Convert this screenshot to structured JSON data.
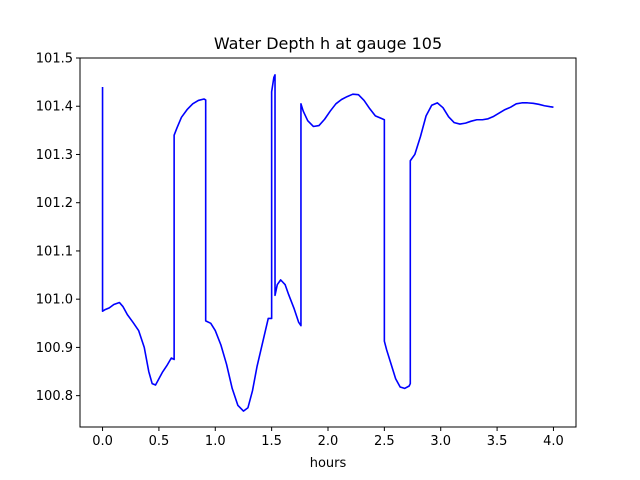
{
  "chart_data": {
    "type": "line",
    "title": "Water Depth h at gauge 105",
    "xlabel": "hours",
    "ylabel": "",
    "xlim": [
      -0.2,
      4.2
    ],
    "ylim": [
      100.735,
      101.5
    ],
    "xticks": [
      0.0,
      0.5,
      1.0,
      1.5,
      2.0,
      2.5,
      3.0,
      3.5,
      4.0
    ],
    "xtick_labels": [
      "0.0",
      "0.5",
      "1.0",
      "1.5",
      "2.0",
      "2.5",
      "3.0",
      "3.5",
      "4.0"
    ],
    "yticks": [
      100.8,
      100.9,
      101.0,
      101.1,
      101.2,
      101.3,
      101.4,
      101.5
    ],
    "ytick_labels": [
      "100.8",
      "100.9",
      "101.0",
      "101.1",
      "101.2",
      "101.3",
      "101.4",
      "101.5"
    ],
    "grid": false,
    "legend": "none",
    "series": [
      {
        "name": "",
        "color": "#0000ff",
        "x": [
          0.0,
          0.0,
          0.02,
          0.06,
          0.1,
          0.15,
          0.18,
          0.22,
          0.27,
          0.32,
          0.37,
          0.41,
          0.44,
          0.47,
          0.5,
          0.53,
          0.57,
          0.61,
          0.635,
          0.635,
          0.66,
          0.7,
          0.75,
          0.8,
          0.85,
          0.9,
          0.915,
          0.915,
          0.96,
          1.0,
          1.05,
          1.1,
          1.15,
          1.2,
          1.25,
          1.29,
          1.33,
          1.37,
          1.42,
          1.47,
          1.5,
          1.5,
          1.52,
          1.53,
          1.53,
          1.55,
          1.58,
          1.62,
          1.65,
          1.7,
          1.74,
          1.76,
          1.76,
          1.78,
          1.82,
          1.87,
          1.92,
          1.97,
          2.02,
          2.07,
          2.12,
          2.17,
          2.22,
          2.27,
          2.32,
          2.37,
          2.42,
          2.47,
          2.5,
          2.5,
          2.52,
          2.56,
          2.6,
          2.64,
          2.68,
          2.72,
          2.73,
          2.73,
          2.77,
          2.82,
          2.87,
          2.92,
          2.97,
          3.02,
          3.07,
          3.12,
          3.17,
          3.22,
          3.27,
          3.32,
          3.37,
          3.42,
          3.47,
          3.52,
          3.57,
          3.62,
          3.67,
          3.72,
          3.77,
          3.82,
          3.87,
          3.92,
          3.97,
          4.0
        ],
        "y": [
          101.44,
          100.975,
          100.978,
          100.982,
          100.989,
          100.993,
          100.985,
          100.968,
          100.952,
          100.935,
          100.9,
          100.85,
          100.825,
          100.822,
          100.835,
          100.848,
          100.862,
          100.878,
          100.875,
          101.34,
          101.355,
          101.377,
          101.393,
          101.405,
          101.412,
          101.415,
          101.413,
          100.955,
          100.95,
          100.935,
          100.905,
          100.865,
          100.815,
          100.78,
          100.768,
          100.775,
          100.81,
          100.86,
          100.91,
          100.96,
          100.96,
          101.43,
          101.46,
          101.465,
          101.008,
          101.03,
          101.04,
          101.03,
          101.01,
          100.98,
          100.952,
          100.945,
          101.405,
          101.39,
          101.37,
          101.358,
          101.36,
          101.373,
          101.39,
          101.405,
          101.414,
          101.42,
          101.425,
          101.424,
          101.412,
          101.395,
          101.38,
          101.375,
          101.372,
          100.913,
          100.895,
          100.865,
          100.835,
          100.818,
          100.815,
          100.82,
          100.825,
          101.287,
          101.3,
          101.337,
          101.38,
          101.402,
          101.407,
          101.397,
          101.378,
          101.366,
          101.363,
          101.365,
          101.369,
          101.372,
          101.372,
          101.374,
          101.379,
          101.386,
          101.393,
          101.398,
          101.405,
          101.407,
          101.407,
          101.406,
          101.404,
          101.401,
          101.399,
          101.398
        ]
      }
    ]
  }
}
